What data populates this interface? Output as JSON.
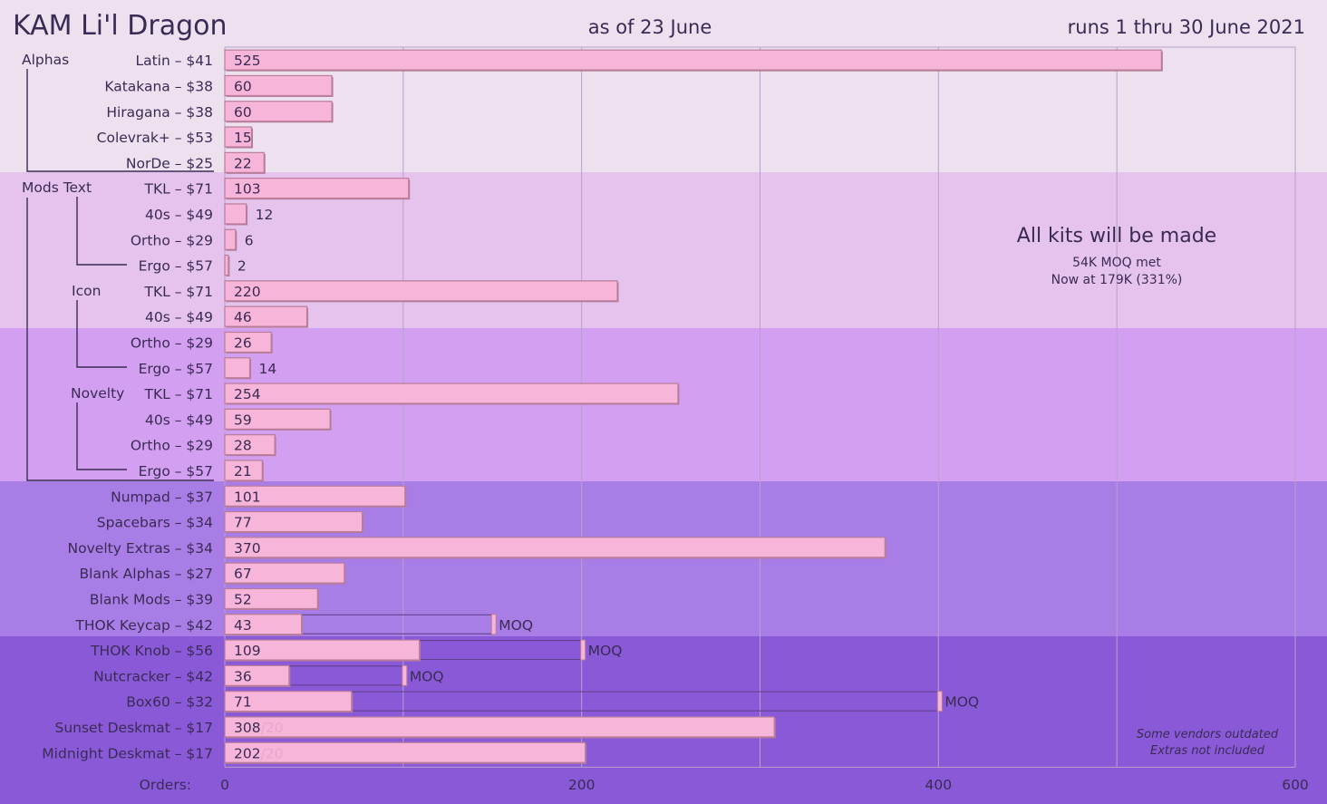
{
  "title": "KAM Li'l Dragon",
  "as_of": "as of 23 June",
  "runs": "runs 1 thru 30 June 2021",
  "colors": {
    "bar_fill": "#f7b5d9",
    "bar_edge": "#b87d9a",
    "band1": "#ede0ef",
    "band2": "#e5c3ec",
    "band3": "#d39ff0",
    "band4": "#a97de6",
    "band5": "#8a59d8",
    "grid": "#b9a0cc",
    "text": "#3a2b55"
  },
  "annotation": {
    "headline": "All kits will be made",
    "line1": "54K MOQ met",
    "line2": "Now at 179K (331%)"
  },
  "footnote": {
    "line1": "Some vendors outdated",
    "line2": "Extras not included"
  },
  "group_labels": {
    "alphas": "Alphas",
    "mods_text": "Mods Text",
    "icon": "Icon",
    "novelty": "Novelty"
  },
  "moq_label": "MOQ",
  "chart_data": {
    "type": "bar",
    "orientation": "horizontal",
    "title": "KAM Li'l Dragon",
    "xlabel": "Orders:",
    "xlim": [
      0,
      600
    ],
    "xticks": [
      0,
      200,
      400,
      600
    ],
    "grid": true,
    "categories": [
      "Latin – $41",
      "Katakana – $38",
      "Hiragana – $38",
      "Colevrak+ – $53",
      "NorDe – $25",
      "TKL – $71",
      "40s – $49",
      "Ortho – $29",
      "Ergo – $57",
      "TKL – $71",
      "40s – $49",
      "Ortho – $29",
      "Ergo – $57",
      "TKL – $71",
      "40s – $49",
      "Ortho – $29",
      "Ergo – $57",
      "Numpad – $37",
      "Spacebars – $34",
      "Novelty Extras – $34",
      "Blank Alphas – $27",
      "Blank Mods – $39",
      "THOK Keycap – $42",
      "THOK Knob – $56",
      "Nutcracker – $42",
      "Box60 – $32",
      "Sunset Deskmat – $17",
      "Midnight Deskmat – $17"
    ],
    "values": [
      525,
      60,
      60,
      15,
      22,
      103,
      12,
      6,
      2,
      220,
      46,
      26,
      14,
      254,
      59,
      28,
      21,
      101,
      77,
      370,
      67,
      52,
      43,
      109,
      36,
      71,
      308,
      202
    ],
    "value_labels": [
      "525",
      "60",
      "60",
      "15",
      "22",
      "103",
      "12",
      "6",
      "2",
      "220",
      "46",
      "26",
      "14",
      "254",
      "59",
      "28",
      "21",
      "101",
      "77",
      "370",
      "67",
      "52",
      "43",
      "109",
      "36",
      "71",
      "308",
      "202"
    ],
    "value_suffix": [
      "",
      "",
      "",
      "",
      "",
      "",
      "",
      "",
      "",
      "",
      "",
      "",
      "",
      "",
      "",
      "",
      "",
      "",
      "",
      "",
      "",
      "",
      "",
      "",
      "",
      "",
      "/20",
      "/20"
    ],
    "moq": [
      null,
      null,
      null,
      null,
      null,
      null,
      null,
      null,
      null,
      null,
      null,
      null,
      null,
      null,
      null,
      null,
      null,
      null,
      null,
      null,
      null,
      null,
      150,
      200,
      100,
      400,
      null,
      null
    ]
  }
}
